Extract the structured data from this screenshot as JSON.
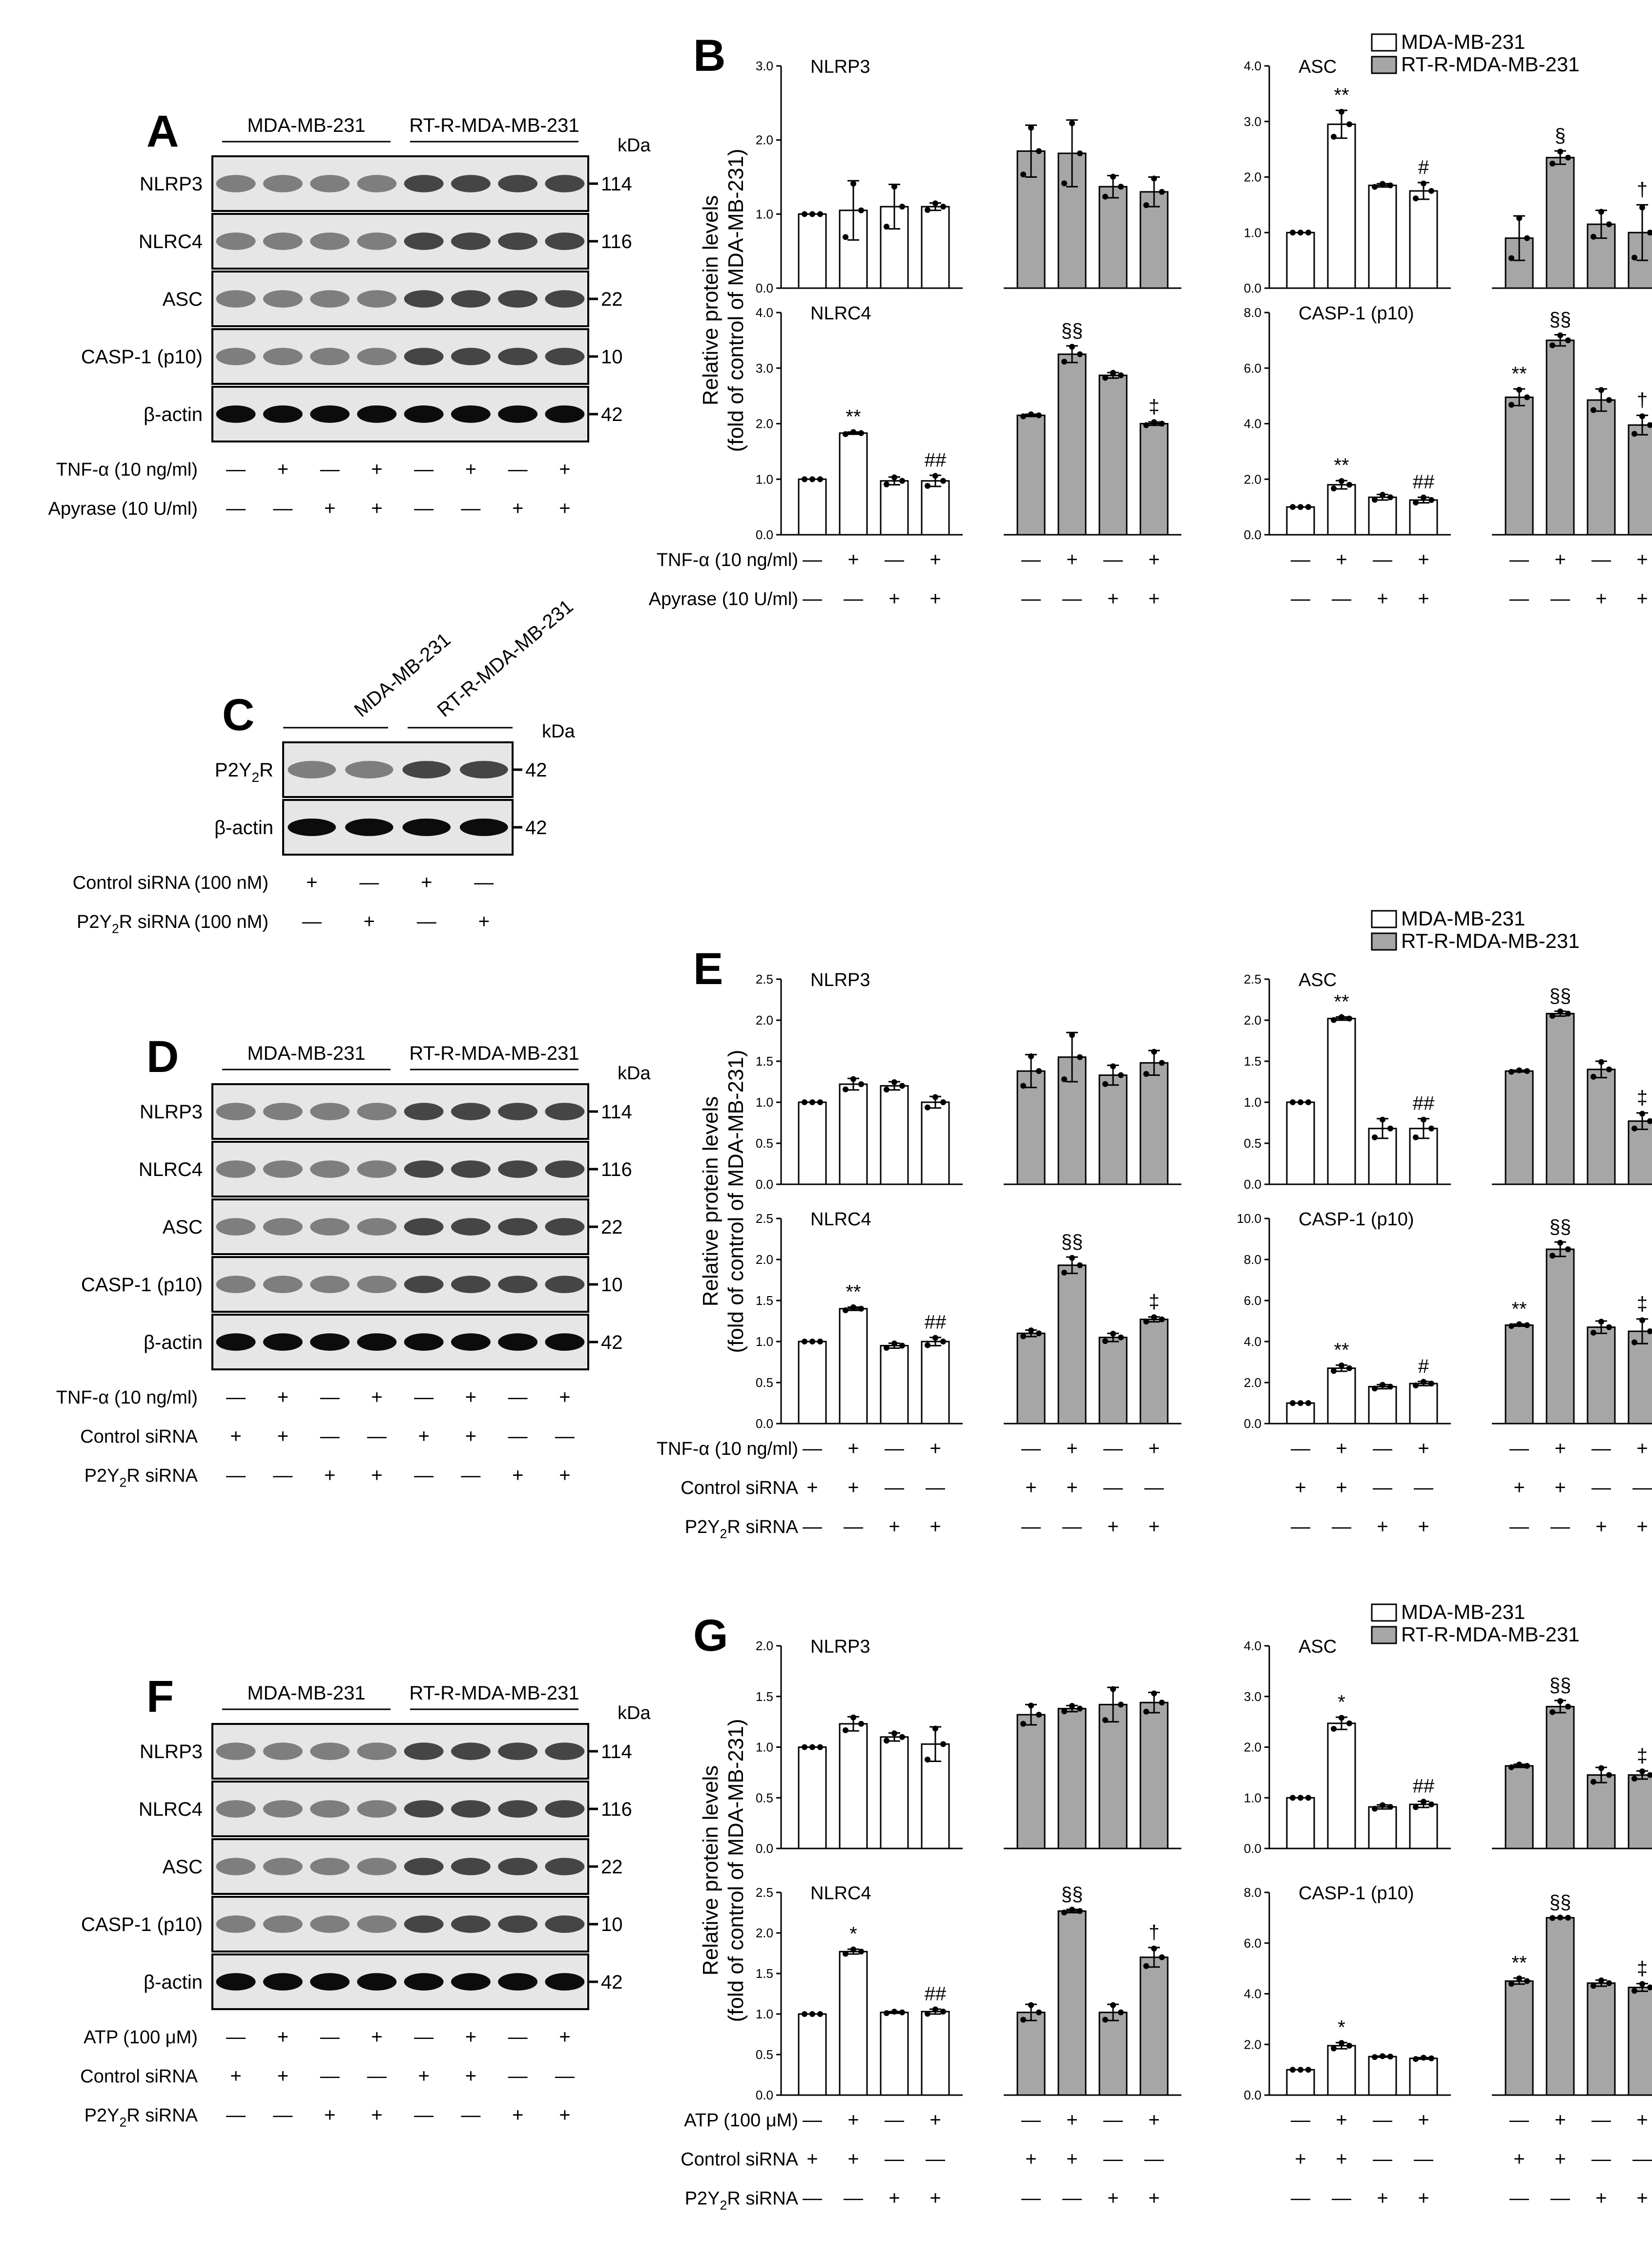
{
  "legend": {
    "white": "MDA-MB-231",
    "gray": "RT-R-MDA-MB-231",
    "white_color": "#ffffff",
    "gray_color": "#a6a6a6"
  },
  "ylabel_line1": "Relative protein levels",
  "ylabel_line2": "(fold of control of MDA-MB-231)",
  "kda": "kDa",
  "blots": {
    "A": {
      "letter": "A",
      "groups": [
        "MDA-MB-231",
        "RT-R-MDA-MB-231"
      ],
      "bands": [
        {
          "name": "NLRP3",
          "kda": "114"
        },
        {
          "name": "NLRC4",
          "kda": "116"
        },
        {
          "name": "ASC",
          "kda": "22"
        },
        {
          "name": "CASP-1 (p10)",
          "kda": "10"
        },
        {
          "name": "β-actin",
          "kda": "42"
        }
      ],
      "treatments": [
        {
          "label": "TNF-α (10 ng/ml)",
          "signs": [
            "—",
            "+",
            "—",
            "+",
            "—",
            "+",
            "—",
            "+"
          ]
        },
        {
          "label": "Apyrase (10 U/ml)",
          "signs": [
            "—",
            "—",
            "+",
            "+",
            "—",
            "—",
            "+",
            "+"
          ]
        }
      ]
    },
    "C": {
      "letter": "C",
      "groups": [
        "MDA-MB-231",
        "RT-R-MDA-MB-231"
      ],
      "bands": [
        {
          "name": "P2Y2R",
          "kda": "42"
        },
        {
          "name": "β-actin",
          "kda": "42"
        }
      ],
      "treatments": [
        {
          "label": "Control siRNA (100 nM)",
          "signs": [
            "+",
            "—",
            "+",
            "—"
          ]
        },
        {
          "label": "P2Y2R siRNA (100 nM)",
          "signs": [
            "—",
            "+",
            "—",
            "+"
          ]
        }
      ]
    },
    "D": {
      "letter": "D",
      "groups": [
        "MDA-MB-231",
        "RT-R-MDA-MB-231"
      ],
      "bands": [
        {
          "name": "NLRP3",
          "kda": "114"
        },
        {
          "name": "NLRC4",
          "kda": "116"
        },
        {
          "name": "ASC",
          "kda": "22"
        },
        {
          "name": "CASP-1 (p10)",
          "kda": "10"
        },
        {
          "name": "β-actin",
          "kda": "42"
        }
      ],
      "treatments": [
        {
          "label": "TNF-α (10 ng/ml)",
          "signs": [
            "—",
            "+",
            "—",
            "+",
            "—",
            "+",
            "—",
            "+"
          ]
        },
        {
          "label": "Control siRNA",
          "signs": [
            "+",
            "+",
            "—",
            "—",
            "+",
            "+",
            "—",
            "—"
          ]
        },
        {
          "label": "P2Y2R siRNA",
          "signs": [
            "—",
            "—",
            "+",
            "+",
            "—",
            "—",
            "+",
            "+"
          ]
        }
      ]
    },
    "F": {
      "letter": "F",
      "groups": [
        "MDA-MB-231",
        "RT-R-MDA-MB-231"
      ],
      "bands": [
        {
          "name": "NLRP3",
          "kda": "114"
        },
        {
          "name": "NLRC4",
          "kda": "116"
        },
        {
          "name": "ASC",
          "kda": "22"
        },
        {
          "name": "CASP-1 (p10)",
          "kda": "10"
        },
        {
          "name": "β-actin",
          "kda": "42"
        }
      ],
      "treatments": [
        {
          "label": "ATP (100 μM)",
          "signs": [
            "—",
            "+",
            "—",
            "+",
            "—",
            "+",
            "—",
            "+"
          ]
        },
        {
          "label": "Control siRNA",
          "signs": [
            "+",
            "+",
            "—",
            "—",
            "+",
            "+",
            "—",
            "—"
          ]
        },
        {
          "label": "P2Y2R siRNA",
          "signs": [
            "—",
            "—",
            "+",
            "+",
            "—",
            "—",
            "+",
            "+"
          ]
        }
      ]
    }
  },
  "chart_data": [
    {
      "panel": "B",
      "type": "bar",
      "treatments": [
        {
          "label": "TNF-α (10 ng/ml)",
          "signs": [
            "—",
            "+",
            "—",
            "+",
            "—",
            "+",
            "—",
            "+"
          ]
        },
        {
          "label": "Apyrase (10 U/ml)",
          "signs": [
            "—",
            "—",
            "+",
            "+",
            "—",
            "—",
            "+",
            "+"
          ]
        }
      ],
      "subplots": [
        {
          "title": "NLRP3",
          "ylim": [
            0,
            3
          ],
          "ticks": [
            "0.0",
            "1.0",
            "2.0",
            "3.0"
          ],
          "values": [
            1.0,
            1.05,
            1.1,
            1.1,
            1.85,
            1.82,
            1.37,
            1.3
          ],
          "errors": [
            0,
            0.4,
            0.3,
            0.05,
            0.35,
            0.45,
            0.15,
            0.2
          ],
          "marks": [
            "",
            "",
            "",
            "",
            "",
            "",
            "",
            ""
          ]
        },
        {
          "title": "ASC",
          "ylim": [
            0,
            4
          ],
          "ticks": [
            "0.0",
            "1.0",
            "2.0",
            "3.0",
            "4.0"
          ],
          "values": [
            1.0,
            2.95,
            1.85,
            1.75,
            0.9,
            2.35,
            1.15,
            1.0
          ],
          "errors": [
            0,
            0.25,
            0.03,
            0.15,
            0.4,
            0.12,
            0.25,
            0.5
          ],
          "marks": [
            "",
            "**",
            "",
            "#",
            "",
            "§",
            "",
            "†"
          ]
        },
        {
          "title": "NLRC4",
          "ylim": [
            0,
            4
          ],
          "ticks": [
            "0.0",
            "1.0",
            "2.0",
            "3.0",
            "4.0"
          ],
          "values": [
            1.0,
            1.83,
            0.97,
            0.97,
            2.15,
            3.25,
            2.87,
            2.0
          ],
          "errors": [
            0,
            0.02,
            0.07,
            0.1,
            0.02,
            0.15,
            0.05,
            0.03
          ],
          "marks": [
            "",
            "**",
            "",
            "##",
            "",
            "§§",
            "",
            "‡"
          ]
        },
        {
          "title": "CASP-1 (p10)",
          "ylim": [
            0,
            8
          ],
          "ticks": [
            "0.0",
            "2.0",
            "4.0",
            "6.0",
            "8.0"
          ],
          "values": [
            1.0,
            1.8,
            1.35,
            1.25,
            4.95,
            7.0,
            4.85,
            3.95
          ],
          "errors": [
            0,
            0.15,
            0.1,
            0.1,
            0.3,
            0.2,
            0.4,
            0.35
          ],
          "marks": [
            "",
            "**",
            "",
            "##",
            "**",
            "§§",
            "",
            "†"
          ]
        }
      ]
    },
    {
      "panel": "E",
      "type": "bar",
      "treatments": [
        {
          "label": "TNF-α (10 ng/ml)",
          "signs": [
            "—",
            "+",
            "—",
            "+",
            "—",
            "+",
            "—",
            "+"
          ]
        },
        {
          "label": "Control siRNA",
          "signs": [
            "+",
            "+",
            "—",
            "—",
            "+",
            "+",
            "—",
            "—"
          ]
        },
        {
          "label": "P2Y2R siRNA",
          "signs": [
            "—",
            "—",
            "+",
            "+",
            "—",
            "—",
            "+",
            "+"
          ]
        }
      ],
      "subplots": [
        {
          "title": "NLRP3",
          "ylim": [
            0,
            2.5
          ],
          "ticks": [
            "0.0",
            "0.5",
            "1.0",
            "1.5",
            "2.0",
            "2.5"
          ],
          "values": [
            1.0,
            1.22,
            1.2,
            1.0,
            1.38,
            1.55,
            1.33,
            1.48
          ],
          "errors": [
            0,
            0.07,
            0.05,
            0.07,
            0.2,
            0.3,
            0.12,
            0.15
          ],
          "marks": [
            "",
            "",
            "",
            "",
            "",
            "",
            "",
            ""
          ]
        },
        {
          "title": "ASC",
          "ylim": [
            0,
            2.5
          ],
          "ticks": [
            "0.0",
            "0.5",
            "1.0",
            "1.5",
            "2.0",
            "2.5"
          ],
          "values": [
            1.0,
            2.02,
            0.68,
            0.68,
            1.38,
            2.08,
            1.4,
            0.77
          ],
          "errors": [
            0,
            0.02,
            0.12,
            0.12,
            0.01,
            0.03,
            0.1,
            0.1
          ],
          "marks": [
            "",
            "**",
            "",
            "##",
            "",
            "§§",
            "",
            "‡"
          ]
        },
        {
          "title": "NLRC4",
          "ylim": [
            0,
            2.5
          ],
          "ticks": [
            "0.0",
            "0.5",
            "1.0",
            "1.5",
            "2.0",
            "2.5"
          ],
          "values": [
            1.0,
            1.4,
            0.95,
            1.0,
            1.1,
            1.93,
            1.05,
            1.27
          ],
          "errors": [
            0,
            0.02,
            0.03,
            0.05,
            0.04,
            0.1,
            0.05,
            0.03
          ],
          "marks": [
            "",
            "**",
            "",
            "##",
            "",
            "§§",
            "",
            "‡"
          ]
        },
        {
          "title": "CASP-1 (p10)",
          "ylim": [
            0,
            10
          ],
          "ticks": [
            "0.0",
            "2.0",
            "4.0",
            "6.0",
            "8.0",
            "10.0"
          ],
          "values": [
            1.0,
            2.7,
            1.8,
            1.95,
            4.8,
            8.5,
            4.7,
            4.5
          ],
          "errors": [
            0,
            0.15,
            0.1,
            0.1,
            0.05,
            0.35,
            0.3,
            0.6
          ],
          "marks": [
            "",
            "**",
            "",
            "#",
            "**",
            "§§",
            "",
            "‡"
          ]
        }
      ]
    },
    {
      "panel": "G",
      "type": "bar",
      "treatments": [
        {
          "label": "ATP (100 μM)",
          "signs": [
            "—",
            "+",
            "—",
            "+",
            "—",
            "+",
            "—",
            "+"
          ]
        },
        {
          "label": "Control siRNA",
          "signs": [
            "+",
            "+",
            "—",
            "—",
            "+",
            "+",
            "—",
            "—"
          ]
        },
        {
          "label": "P2Y2R siRNA",
          "signs": [
            "—",
            "—",
            "+",
            "+",
            "—",
            "—",
            "+",
            "+"
          ]
        }
      ],
      "subplots": [
        {
          "title": "NLRP3",
          "ylim": [
            0,
            2.0
          ],
          "ticks": [
            "0.0",
            "0.5",
            "1.0",
            "1.5",
            "2.0"
          ],
          "values": [
            1.0,
            1.23,
            1.1,
            1.03,
            1.32,
            1.38,
            1.42,
            1.44
          ],
          "errors": [
            0,
            0.07,
            0.04,
            0.17,
            0.1,
            0.03,
            0.17,
            0.1
          ],
          "marks": [
            "",
            "",
            "",
            "",
            "",
            "",
            "",
            ""
          ]
        },
        {
          "title": "ASC",
          "ylim": [
            0,
            4
          ],
          "ticks": [
            "0.0",
            "1.0",
            "2.0",
            "3.0",
            "4.0"
          ],
          "values": [
            1.0,
            2.47,
            0.82,
            0.87,
            1.63,
            2.8,
            1.45,
            1.45
          ],
          "errors": [
            0,
            0.12,
            0.04,
            0.06,
            0.03,
            0.12,
            0.15,
            0.08
          ],
          "marks": [
            "",
            "*",
            "",
            "##",
            "",
            "§§",
            "",
            "‡"
          ]
        },
        {
          "title": "NLRC4",
          "ylim": [
            0,
            2.5
          ],
          "ticks": [
            "0.0",
            "0.5",
            "1.0",
            "1.5",
            "2.0",
            "2.5"
          ],
          "values": [
            1.0,
            1.77,
            1.02,
            1.03,
            1.02,
            2.27,
            1.02,
            1.7
          ],
          "errors": [
            0,
            0.03,
            0.01,
            0.03,
            0.1,
            0.02,
            0.1,
            0.12
          ],
          "marks": [
            "",
            "*",
            "",
            "##",
            "",
            "§§",
            "",
            "†"
          ]
        },
        {
          "title": "CASP-1 (p10)",
          "ylim": [
            0,
            8
          ],
          "ticks": [
            "0.0",
            "2.0",
            "4.0",
            "6.0",
            "8.0"
          ],
          "values": [
            1.0,
            1.95,
            1.52,
            1.45,
            4.5,
            7.0,
            4.42,
            4.25
          ],
          "errors": [
            0,
            0.12,
            0.02,
            0.03,
            0.12,
            0.01,
            0.12,
            0.15
          ],
          "marks": [
            "",
            "*",
            "",
            "",
            "**",
            "§§",
            "",
            "‡"
          ]
        }
      ]
    }
  ]
}
